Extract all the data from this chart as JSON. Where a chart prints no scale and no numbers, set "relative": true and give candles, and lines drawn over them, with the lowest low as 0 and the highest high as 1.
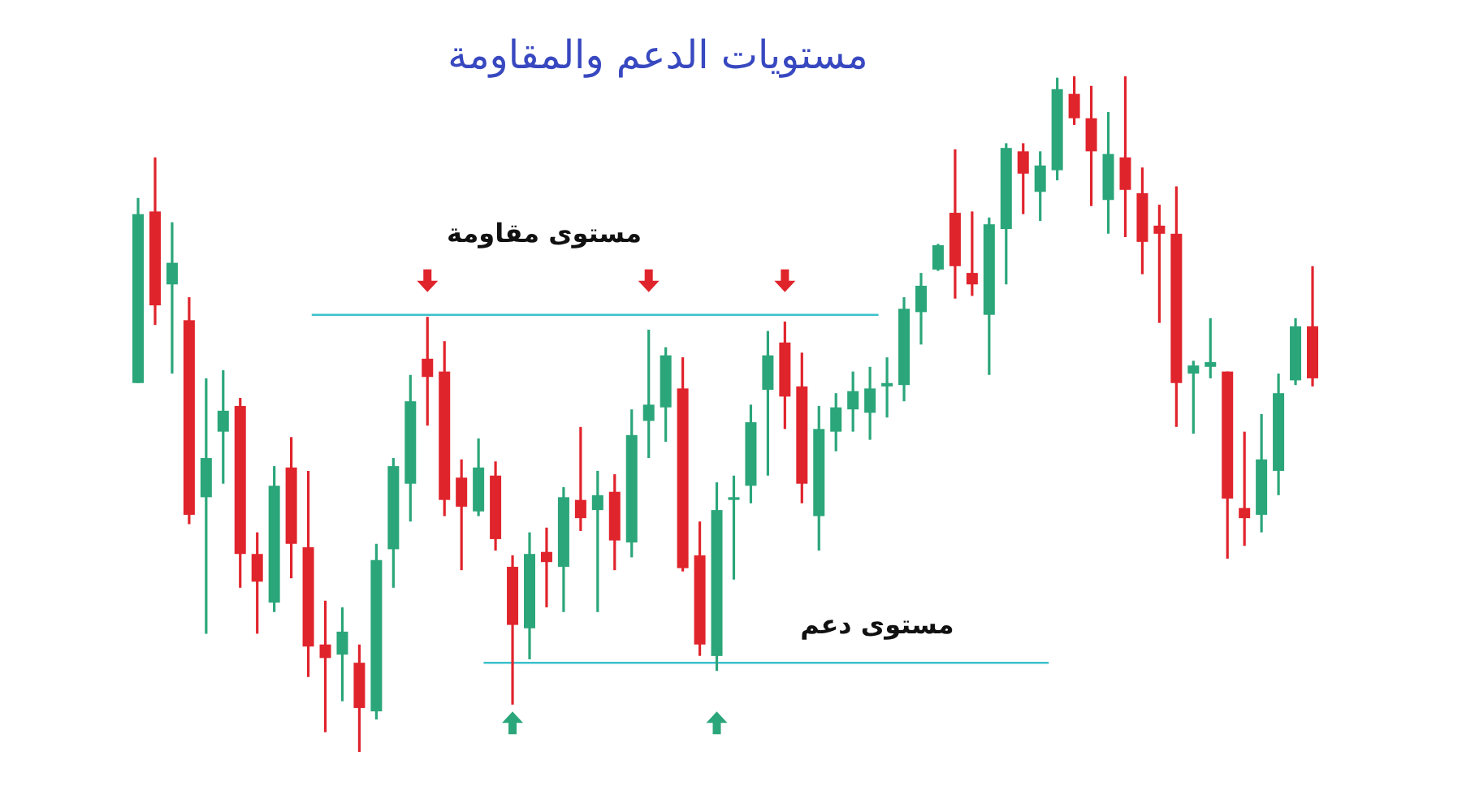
{
  "chart_data": {
    "type": "candlestick",
    "title": "مستويات الدعم والمقاومة",
    "relative": true,
    "categories": [
      null,
      null,
      null,
      null,
      null,
      null,
      null,
      null,
      null,
      null,
      null,
      null,
      null,
      null,
      null,
      null,
      null,
      null,
      null,
      null,
      null,
      null,
      null,
      null,
      null,
      null,
      null,
      null,
      null,
      null,
      null,
      null,
      null,
      null,
      null,
      null,
      null,
      null,
      null,
      null,
      null,
      null,
      null,
      null,
      null,
      null,
      null,
      null,
      null,
      null,
      null,
      null,
      null,
      null,
      null,
      null,
      null,
      null,
      null,
      null,
      null,
      null,
      null,
      null,
      null,
      null,
      null,
      null,
      null,
      null
    ],
    "ohlc": [
      [
        0.546,
        0.82,
        0.546,
        0.796
      ],
      [
        0.8,
        0.88,
        0.632,
        0.661
      ],
      [
        0.692,
        0.784,
        0.56,
        0.724
      ],
      [
        0.639,
        0.673,
        0.337,
        0.351
      ],
      [
        0.377,
        0.553,
        0.175,
        0.435
      ],
      [
        0.474,
        0.565,
        0.397,
        0.505
      ],
      [
        0.512,
        0.524,
        0.243,
        0.293
      ],
      [
        0.293,
        0.325,
        0.175,
        0.252
      ],
      [
        0.221,
        0.423,
        0.207,
        0.394
      ],
      [
        0.421,
        0.466,
        0.257,
        0.308
      ],
      [
        0.303,
        0.416,
        0.111,
        0.156
      ],
      [
        0.159,
        0.224,
        0.029,
        0.139
      ],
      [
        0.144,
        0.214,
        0.075,
        0.178
      ],
      [
        0.132,
        0.159,
        0,
        0.065
      ],
      [
        0.06,
        0.308,
        0.048,
        0.284
      ],
      [
        0.3,
        0.435,
        0.243,
        0.423
      ],
      [
        0.397,
        0.558,
        0.341,
        0.519
      ],
      [
        0.582,
        0.644,
        0.483,
        0.555
      ],
      [
        0.563,
        0.608,
        0.349,
        0.373
      ],
      [
        0.406,
        0.433,
        0.269,
        0.363
      ],
      [
        0.356,
        0.464,
        0.349,
        0.421
      ],
      [
        0.409,
        0.43,
        0.298,
        0.315
      ],
      [
        0.274,
        0.291,
        0.07,
        0.188
      ],
      [
        0.183,
        0.325,
        0.137,
        0.293
      ],
      [
        0.296,
        0.332,
        0.214,
        0.281
      ],
      [
        0.274,
        0.392,
        0.207,
        0.377
      ],
      [
        0.373,
        0.481,
        0.327,
        0.346
      ],
      [
        0.358,
        0.416,
        0.207,
        0.38
      ],
      [
        0.385,
        0.411,
        0.269,
        0.313
      ],
      [
        0.31,
        0.507,
        0.288,
        0.469
      ],
      [
        0.49,
        0.625,
        0.435,
        0.514
      ],
      [
        0.51,
        0.599,
        0.459,
        0.587
      ],
      [
        0.538,
        0.584,
        0.267,
        0.272
      ],
      [
        0.291,
        0.341,
        0.142,
        0.159
      ],
      [
        0.142,
        0.399,
        0.12,
        0.358
      ],
      [
        0.373,
        0.409,
        0.255,
        0.377
      ],
      [
        0.394,
        0.514,
        0.368,
        0.488
      ],
      [
        0.536,
        0.623,
        0.409,
        0.587
      ],
      [
        0.606,
        0.637,
        0.478,
        0.526
      ],
      [
        0.541,
        0.591,
        0.368,
        0.397
      ],
      [
        0.349,
        0.512,
        0.298,
        0.478
      ],
      [
        0.474,
        0.531,
        0.445,
        0.51
      ],
      [
        0.507,
        0.563,
        0.474,
        0.534
      ],
      [
        0.502,
        0.57,
        0.462,
        0.538
      ],
      [
        0.541,
        0.584,
        0.495,
        0.546
      ],
      [
        0.543,
        0.673,
        0.519,
        0.656
      ],
      [
        0.651,
        0.709,
        0.603,
        0.69
      ],
      [
        0.714,
        0.752,
        0.712,
        0.75
      ],
      [
        0.798,
        0.892,
        0.671,
        0.719
      ],
      [
        0.709,
        0.8,
        0.675,
        0.692
      ],
      [
        0.647,
        0.791,
        0.558,
        0.781
      ],
      [
        0.774,
        0.901,
        0.692,
        0.894
      ],
      [
        0.889,
        0.901,
        0.796,
        0.856
      ],
      [
        0.829,
        0.889,
        0.786,
        0.868
      ],
      [
        0.861,
        0.998,
        0.846,
        0.981
      ],
      [
        0.974,
        1,
        0.928,
        0.938
      ],
      [
        0.938,
        0.986,
        0.808,
        0.889
      ],
      [
        0.817,
        0.947,
        0.767,
        0.885
      ],
      [
        0.88,
        1,
        0.762,
        0.832
      ],
      [
        0.827,
        0.865,
        0.707,
        0.755
      ],
      [
        0.779,
        0.81,
        0.635,
        0.767
      ],
      [
        0.767,
        0.837,
        0.481,
        0.546
      ],
      [
        0.56,
        0.579,
        0.471,
        0.572
      ],
      [
        0.57,
        0.642,
        0.553,
        0.577
      ],
      [
        0.563,
        0.563,
        0.286,
        0.375
      ],
      [
        0.361,
        0.474,
        0.305,
        0.346
      ],
      [
        0.351,
        0.5,
        0.325,
        0.433
      ],
      [
        0.416,
        0.56,
        0.38,
        0.531
      ],
      [
        0.55,
        0.642,
        0.543,
        0.63
      ],
      [
        0.63,
        0.719,
        0.541,
        0.553
      ]
    ],
    "colors": [
      "#2ba67a",
      "#e0242c",
      "#2ba67a",
      "#e0242c",
      "#2ba67a",
      "#2ba67a",
      "#e0242c",
      "#e0242c",
      "#2ba67a",
      "#e0242c",
      "#e0242c",
      "#e0242c",
      "#2ba67a",
      "#e0242c",
      "#2ba67a",
      "#2ba67a",
      "#2ba67a",
      "#e0242c",
      "#e0242c",
      "#e0242c",
      "#2ba67a",
      "#e0242c",
      "#e0242c",
      "#2ba67a",
      "#e0242c",
      "#2ba67a",
      "#e0242c",
      "#2ba67a",
      "#e0242c",
      "#2ba67a",
      "#2ba67a",
      "#2ba67a",
      "#e0242c",
      "#e0242c",
      "#2ba67a",
      "#2ba67a",
      "#2ba67a",
      "#2ba67a",
      "#e0242c",
      "#e0242c",
      "#2ba67a",
      "#2ba67a",
      "#2ba67a",
      "#2ba67a",
      "#2ba67a",
      "#2ba67a",
      "#2ba67a",
      "#2ba67a",
      "#e0242c",
      "#e0242c",
      "#2ba67a",
      "#2ba67a",
      "#e0242c",
      "#2ba67a",
      "#2ba67a",
      "#e0242c",
      "#e0242c",
      "#2ba67a",
      "#e0242c",
      "#e0242c",
      "#e0242c",
      "#e0242c",
      "#2ba67a",
      "#2ba67a",
      "#e0242c",
      "#e0242c",
      "#2ba67a",
      "#2ba67a",
      "#2ba67a",
      "#e0242c"
    ],
    "ref_lines": [
      {
        "axis": "y",
        "value": 0.647,
        "label": "مستوى مقاومة",
        "color": "#3cc0cc"
      },
      {
        "axis": "y",
        "value": 0.132,
        "label": "مستوى دعم",
        "color": "#3cc0cc"
      }
    ]
  }
}
